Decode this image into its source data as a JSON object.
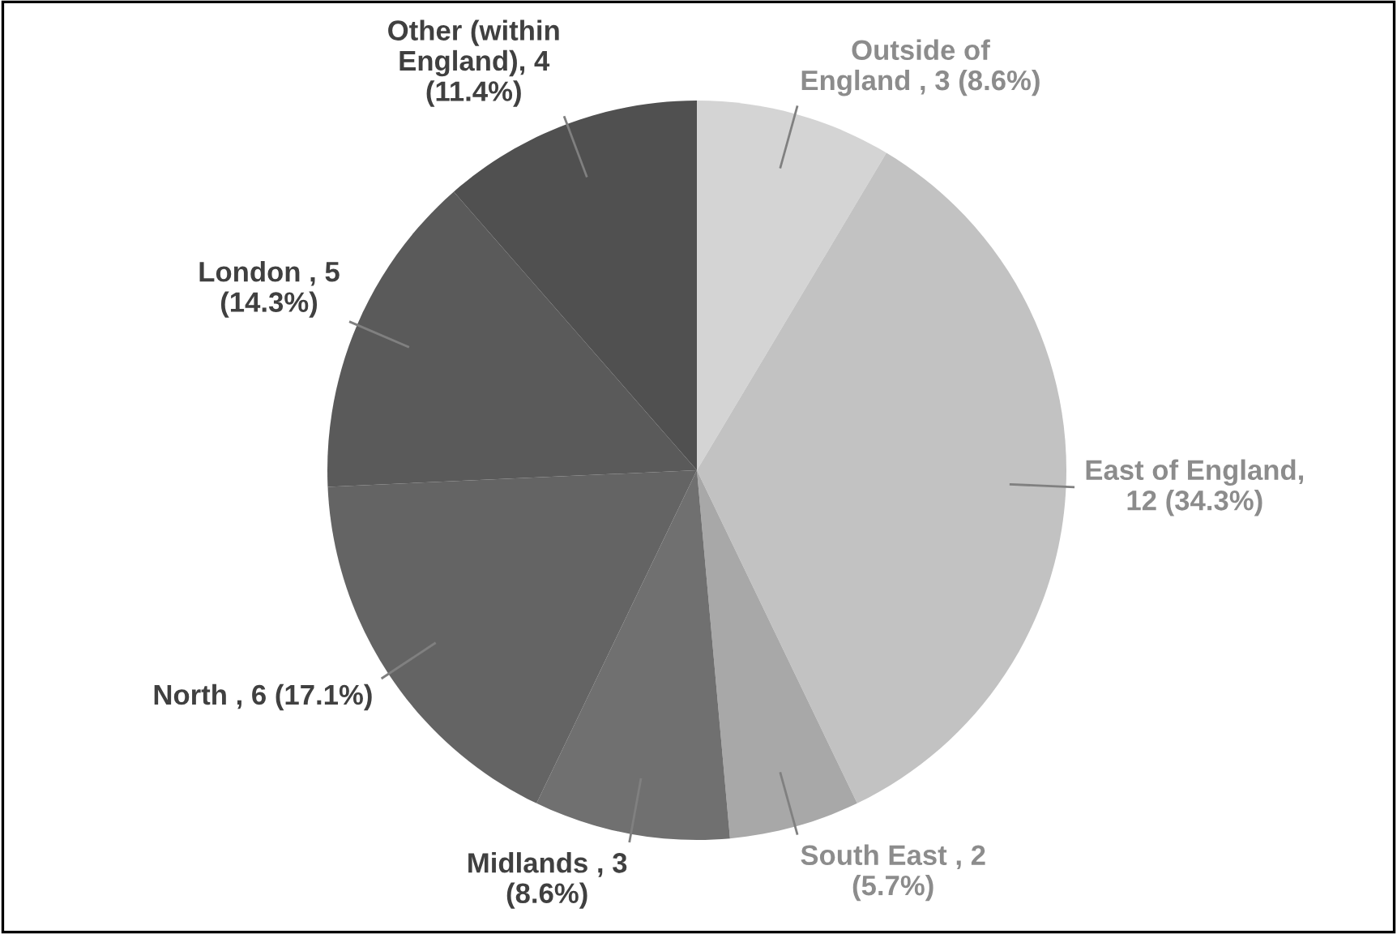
{
  "chart_data": {
    "type": "pie",
    "categories": [
      "Outside of\nEngland",
      "East of England",
      "South East",
      "Midlands",
      "North",
      "London",
      "Other (within\nEngland)"
    ],
    "values": [
      3,
      12,
      2,
      3,
      6,
      5,
      4
    ],
    "value_labels": [
      " , 3 (8.6%)",
      ",\n12 (34.3%)",
      " , 2\n(5.7%)",
      " , 3\n(8.6%)",
      " , 6 (17.1%)",
      " , 5\n(14.3%)",
      ", 4\n(11.4%)"
    ],
    "colors": [
      "#d4d4d4",
      "#c2c2c2",
      "#a8a8a8",
      "#707070",
      "#646464",
      "#5a5a5a",
      "#505050"
    ]
  }
}
